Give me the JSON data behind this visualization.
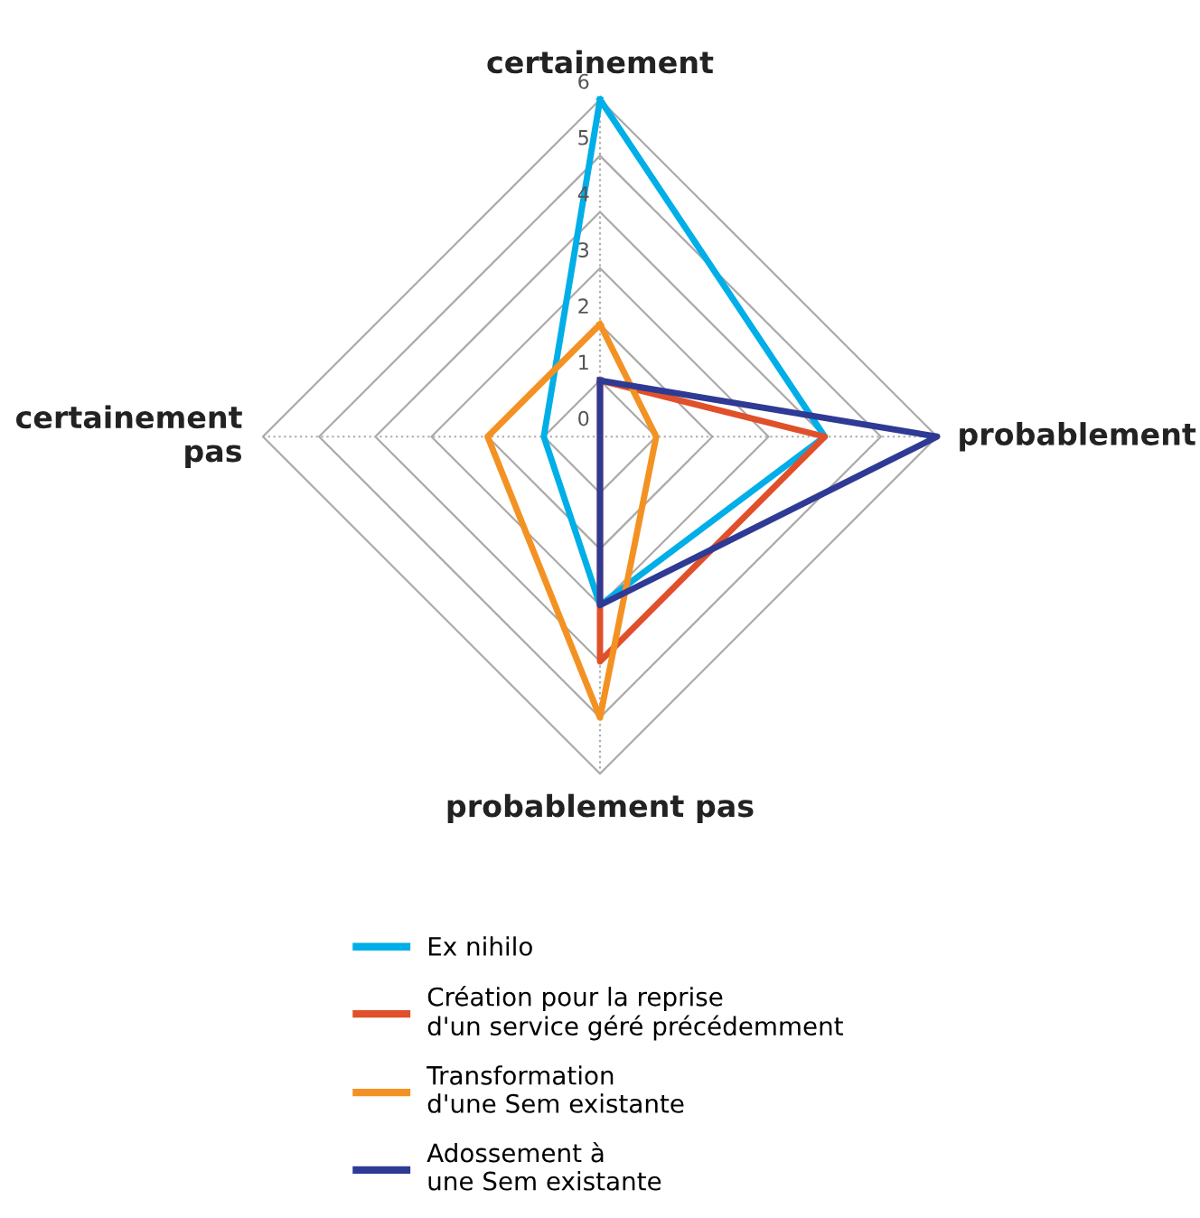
{
  "chart_data": {
    "type": "radar",
    "categories": [
      "certainement",
      "probablement",
      "probablement pas",
      "certainement pas"
    ],
    "series": [
      {
        "name": "Ex nihilo",
        "color": "#00aee8",
        "values": [
          6,
          4,
          3,
          1
        ]
      },
      {
        "name": "Création pour la reprise\nd'un service géré précédemment",
        "color": "#e0502a",
        "values": [
          1,
          4,
          4,
          0
        ]
      },
      {
        "name": "Transformation\nd'une Sem existante",
        "color": "#f39223",
        "values": [
          2,
          1,
          5,
          2
        ]
      },
      {
        "name": "Adossement à\nune Sem existante",
        "color": "#2e3a94",
        "values": [
          1,
          6,
          3,
          0
        ]
      }
    ],
    "ylim": [
      0,
      6
    ],
    "yticks": [
      0,
      1,
      2,
      3,
      4,
      5,
      6
    ],
    "legend": "bottom",
    "grid": true
  }
}
